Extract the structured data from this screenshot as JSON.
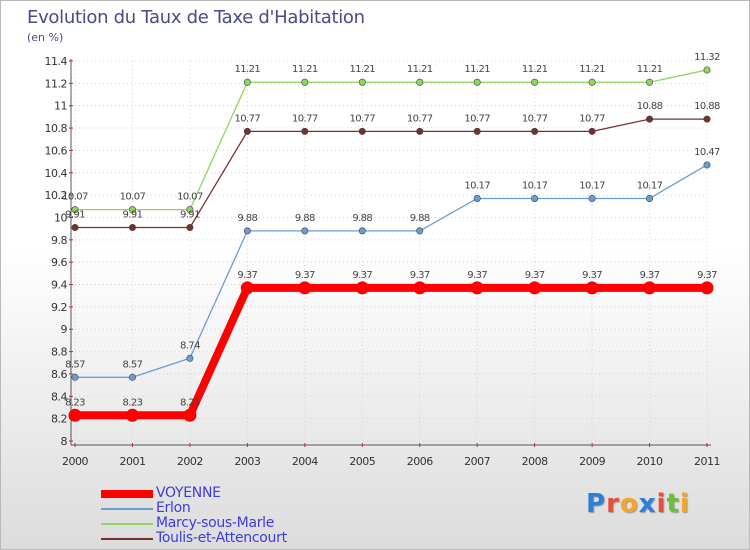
{
  "title": "Evolution du Taux de Taxe d'Habitation",
  "subtitle": "(en %)",
  "logo": {
    "letters": [
      "P",
      "r",
      "o",
      "x",
      "i",
      "t",
      "i"
    ],
    "colors": [
      "#2f7fd6",
      "#e94e3c",
      "#f5a623",
      "#2f7fd6",
      "#e94e3c",
      "#6bbf3a",
      "#f5a623"
    ]
  },
  "chart_data": {
    "type": "line",
    "title": "Evolution du Taux de Taxe d'Habitation",
    "ylabel": "(en %)",
    "xlabel": "",
    "x": [
      "2000",
      "2001",
      "2002",
      "2003",
      "2004",
      "2005",
      "2006",
      "2007",
      "2008",
      "2009",
      "2010",
      "2011"
    ],
    "ylim": [
      8,
      11.4
    ],
    "yticks": [
      "8",
      "8.2",
      "8.4",
      "8.6",
      "8.8",
      "9",
      "9.2",
      "9.4",
      "9.6",
      "9.8",
      "10",
      "10.2",
      "10.4",
      "10.6",
      "10.8",
      "11",
      "11.2",
      "11.4"
    ],
    "grid": true,
    "legend_position": "bottom-left",
    "series": [
      {
        "name": "VOYENNE",
        "color": "#ff0000",
        "values": [
          8.23,
          8.23,
          8.23,
          9.37,
          9.37,
          9.37,
          9.37,
          9.37,
          9.37,
          9.37,
          9.37,
          9.37
        ],
        "labels": [
          "8.23",
          "8.23",
          "8.23",
          "9.37",
          "9.37",
          "9.37",
          "9.37",
          "9.37",
          "9.37",
          "9.37",
          "9.37",
          "9.37"
        ]
      },
      {
        "name": "Erlon",
        "color": "#6a9ed0",
        "values": [
          8.57,
          8.57,
          8.74,
          9.88,
          9.88,
          9.88,
          9.88,
          10.17,
          10.17,
          10.17,
          10.17,
          10.47
        ],
        "labels": [
          "8.57",
          "8.57",
          "8.74",
          "9.88",
          "9.88",
          "9.88",
          "9.88",
          "10.17",
          "10.17",
          "10.17",
          "10.17",
          "10.47"
        ]
      },
      {
        "name": "Marcy-sous-Marle",
        "color": "#8fd65e",
        "values": [
          10.07,
          10.07,
          10.07,
          11.21,
          11.21,
          11.21,
          11.21,
          11.21,
          11.21,
          11.21,
          11.21,
          11.32
        ],
        "labels": [
          "10.07",
          "10.07",
          "10.07",
          "11.21",
          "11.21",
          "11.21",
          "11.21",
          "11.21",
          "11.21",
          "11.21",
          "11.21",
          "11.32"
        ]
      },
      {
        "name": "Toulis-et-Attencourt",
        "color": "#7a2f2f",
        "values": [
          9.91,
          9.91,
          9.91,
          10.77,
          10.77,
          10.77,
          10.77,
          10.77,
          10.77,
          10.77,
          10.88,
          10.88
        ],
        "labels": [
          "9.91",
          "9.91",
          "9.91",
          "10.77",
          "10.77",
          "10.77",
          "10.77",
          "10.77",
          "10.77",
          "10.77",
          "10.88",
          "10.88"
        ]
      }
    ]
  }
}
